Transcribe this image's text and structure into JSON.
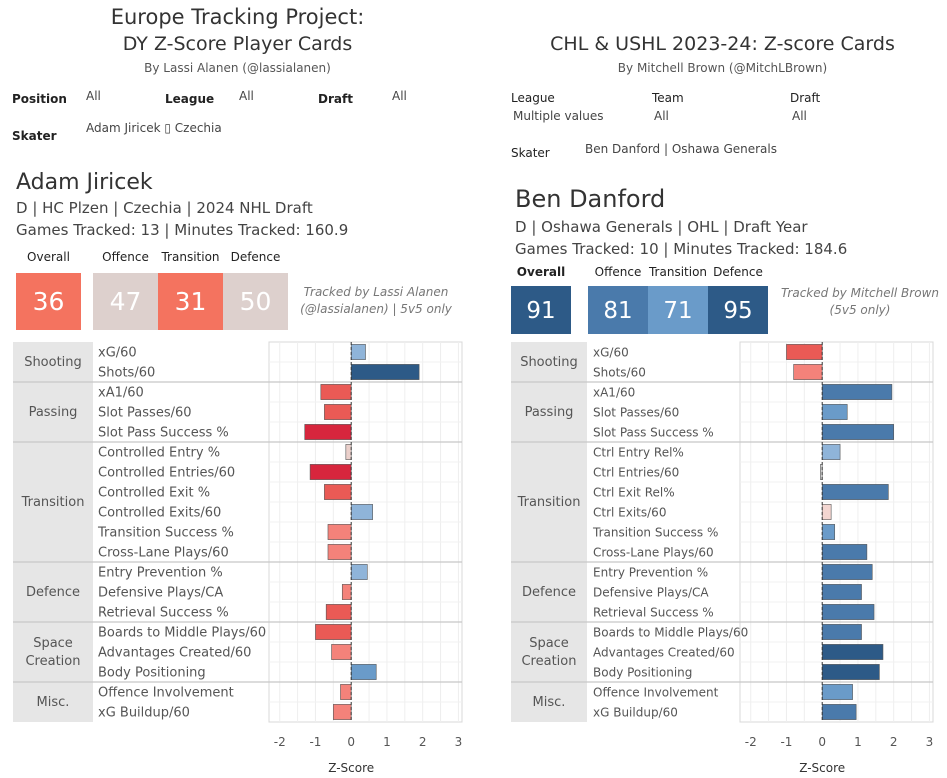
{
  "left": {
    "title_line1": "Europe Tracking Project:",
    "title_line2": "DY Z-Score Player Cards",
    "byline": "By Lassi Alanen (@lassialanen)",
    "filters": [
      {
        "label": "Position",
        "value": "All"
      },
      {
        "label": "League",
        "value": "All"
      },
      {
        "label": "Draft",
        "value": "All"
      }
    ],
    "skater_label": "Skater",
    "skater_value": "Adam Jiricek ▯ Czechia",
    "player_name": "Adam Jiricek",
    "info_line": "D | HC Plzen | Czechia | 2024 NHL Draft",
    "tracked_line": "Games Tracked: 13 | Minutes Tracked: 160.9",
    "scores": [
      {
        "label": "Overall",
        "value": "36",
        "color": "#f4735f"
      },
      {
        "label": "Offence",
        "value": "47",
        "color": "#ddd0cd"
      },
      {
        "label": "Transition",
        "value": "31",
        "color": "#f4735f"
      },
      {
        "label": "Defence",
        "value": "50",
        "color": "#ddd0cd"
      }
    ],
    "credit_line1": "Tracked by Lassi Alanen",
    "credit_line2": "(@lassialanen) | 5v5 only"
  },
  "right": {
    "title": "CHL & USHL 2023-24: Z-score Cards",
    "byline": "By Mitchell Brown (@MitchLBrown)",
    "filters": [
      {
        "label": "League",
        "value": "Multiple values"
      },
      {
        "label": "Team",
        "value": "All"
      },
      {
        "label": "Draft",
        "value": "All"
      }
    ],
    "skater_label": "Skater",
    "skater_value": "Ben Danford | Oshawa Generals",
    "player_name": "Ben Danford",
    "info_line": "D | Oshawa Generals | OHL | Draft Year",
    "tracked_line": "Games Tracked: 10 | Minutes Tracked: 184.6",
    "scores": [
      {
        "label": "Overall",
        "value": "91",
        "color": "#2d5a87"
      },
      {
        "label": "Offence",
        "value": "81",
        "color": "#4a7aab"
      },
      {
        "label": "Transition",
        "value": "71",
        "color": "#6a9bc9"
      },
      {
        "label": "Defence",
        "value": "95",
        "color": "#2d5a87"
      }
    ],
    "credit_line1": "Tracked by Mitchell Brown",
    "credit_line2": "(5v5 only)"
  },
  "chart_data": [
    {
      "type": "bar",
      "orientation": "horizontal",
      "xlabel": "Z-Score",
      "xlim": [
        -2.3,
        3.1
      ],
      "xticks": [
        -2,
        -1,
        0,
        1,
        2,
        3
      ],
      "groups": [
        {
          "name": "Shooting",
          "metrics": [
            {
              "label": "xG/60",
              "value": 0.4,
              "color": "#8fb4d9"
            },
            {
              "label": "Shots/60",
              "value": 1.9,
              "color": "#2d5a87"
            }
          ]
        },
        {
          "name": "Passing",
          "metrics": [
            {
              "label": "xA1/60",
              "value": -0.85,
              "color": "#ea5a55"
            },
            {
              "label": "Slot Passes/60",
              "value": -0.75,
              "color": "#ea5a55"
            },
            {
              "label": "Slot Pass Success %",
              "value": -1.3,
              "color": "#d7263d"
            }
          ]
        },
        {
          "name": "Transition",
          "metrics": [
            {
              "label": "Controlled Entry %",
              "value": -0.15,
              "color": "#ebd0cb"
            },
            {
              "label": "Controlled Entries/60",
              "value": -1.15,
              "color": "#d7263d"
            },
            {
              "label": "Controlled Exit %",
              "value": -0.75,
              "color": "#ea5a55"
            },
            {
              "label": "Controlled Exits/60",
              "value": 0.6,
              "color": "#8fb4d9"
            },
            {
              "label": "Transition Success %",
              "value": -0.65,
              "color": "#f4827a"
            },
            {
              "label": "Cross-Lane Plays/60",
              "value": -0.65,
              "color": "#f4827a"
            }
          ]
        },
        {
          "name": "Defence",
          "metrics": [
            {
              "label": "Entry Prevention %",
              "value": 0.45,
              "color": "#8fb4d9"
            },
            {
              "label": "Defensive Plays/CA",
              "value": -0.25,
              "color": "#f4827a"
            },
            {
              "label": "Retrieval Success %",
              "value": -0.7,
              "color": "#ea5a55"
            }
          ]
        },
        {
          "name": "Space\nCreation",
          "metrics": [
            {
              "label": "Boards to Middle Plays/60",
              "value": -1.0,
              "color": "#ea5a55"
            },
            {
              "label": "Advantages Created/60",
              "value": -0.55,
              "color": "#f4827a"
            },
            {
              "label": "Body Positioning",
              "value": 0.7,
              "color": "#6a9bc9"
            }
          ]
        },
        {
          "name": "Misc.",
          "metrics": [
            {
              "label": "Offence Involvement",
              "value": -0.3,
              "color": "#f4827a"
            },
            {
              "label": "xG Buildup/60",
              "value": -0.5,
              "color": "#f4827a"
            }
          ]
        }
      ]
    },
    {
      "type": "bar",
      "orientation": "horizontal",
      "xlabel": "Z-Score",
      "xlim": [
        -2.3,
        3.1
      ],
      "xticks": [
        -2,
        -1,
        0,
        1,
        2,
        3
      ],
      "groups": [
        {
          "name": "Shooting",
          "metrics": [
            {
              "label": "xG/60",
              "value": -1.0,
              "color": "#ea5a55"
            },
            {
              "label": "Shots/60",
              "value": -0.8,
              "color": "#f4827a"
            }
          ]
        },
        {
          "name": "Passing",
          "metrics": [
            {
              "label": "xA1/60",
              "value": 1.95,
              "color": "#4a7aab"
            },
            {
              "label": "Slot Passes/60",
              "value": 0.7,
              "color": "#6a9bc9"
            },
            {
              "label": "Slot Pass Success %",
              "value": 2.0,
              "color": "#4a7aab"
            }
          ]
        },
        {
          "name": "Transition",
          "metrics": [
            {
              "label": "Ctrl Entry Rel%",
              "value": 0.5,
              "color": "#8fb4d9"
            },
            {
              "label": "Ctrl Entries/60",
              "value": -0.05,
              "color": "#dcdcdc"
            },
            {
              "label": "Ctrl Exit Rel%",
              "value": 1.85,
              "color": "#4a7aab"
            },
            {
              "label": "Ctrl Exits/60",
              "value": 0.25,
              "color": "#f3d6d1"
            },
            {
              "label": "Transition Success %",
              "value": 0.35,
              "color": "#6a9bc9"
            },
            {
              "label": "Cross-Lane Plays/60",
              "value": 1.25,
              "color": "#4a7aab"
            }
          ]
        },
        {
          "name": "Defence",
          "metrics": [
            {
              "label": "Entry Prevention %",
              "value": 1.4,
              "color": "#4a7aab"
            },
            {
              "label": "Defensive Plays/CA",
              "value": 1.1,
              "color": "#4a7aab"
            },
            {
              "label": "Retrieval Success %",
              "value": 1.45,
              "color": "#4a7aab"
            }
          ]
        },
        {
          "name": "Space\nCreation",
          "metrics": [
            {
              "label": "Boards to Middle Plays/60",
              "value": 1.1,
              "color": "#4a7aab"
            },
            {
              "label": "Advantages Created/60",
              "value": 1.7,
              "color": "#2d5a87"
            },
            {
              "label": "Body Positioning",
              "value": 1.6,
              "color": "#2d5a87"
            }
          ]
        },
        {
          "name": "Misc.",
          "metrics": [
            {
              "label": "Offence Involvement",
              "value": 0.85,
              "color": "#6a9bc9"
            },
            {
              "label": "xG Buildup/60",
              "value": 0.95,
              "color": "#4a7aab"
            }
          ]
        }
      ]
    }
  ]
}
